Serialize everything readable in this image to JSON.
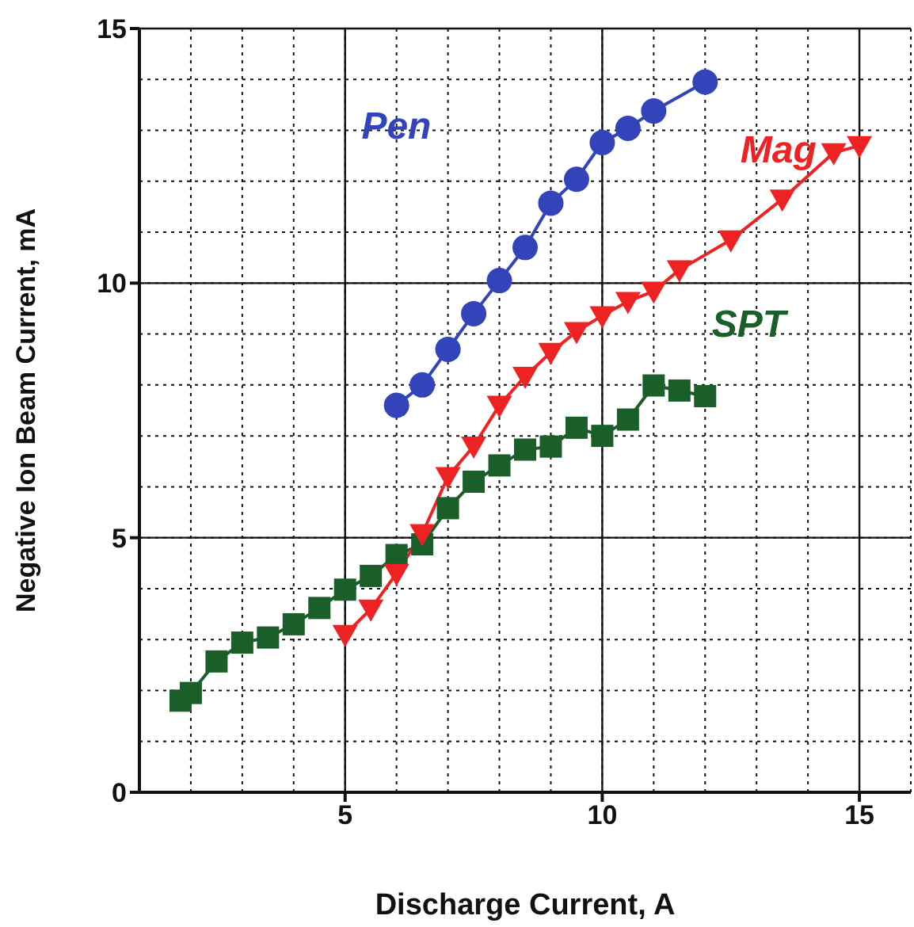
{
  "chart_data": {
    "type": "line",
    "xlabel": "Discharge Current, A",
    "ylabel": "Negative Ion Beam Current, mA",
    "xlim": [
      1,
      16
    ],
    "ylim": [
      0,
      15
    ],
    "xticks": [
      5,
      10,
      15
    ],
    "yticks": [
      0,
      5,
      10,
      15
    ],
    "grid": true,
    "line_style": "solid",
    "series": [
      {
        "name": "Pen",
        "color": "#3344bb",
        "marker": "circle",
        "x": [
          6,
          6.5,
          7,
          7.5,
          8,
          8.5,
          9,
          9.5,
          10,
          10.5,
          11,
          12
        ],
        "values": [
          7.6,
          8.0,
          8.7,
          9.4,
          10.05,
          10.7,
          11.57,
          12.04,
          12.76,
          13.04,
          13.38,
          13.95
        ]
      },
      {
        "name": "Mag",
        "color": "#ee2222",
        "marker": "triangle",
        "x": [
          5,
          5.5,
          6,
          6.5,
          7,
          7.5,
          8,
          8.5,
          9,
          9.5,
          10,
          10.5,
          11,
          11.5,
          12.5,
          13.5,
          14.5,
          15
        ],
        "values": [
          3.1,
          3.6,
          4.3,
          5.08,
          6.2,
          6.8,
          7.6,
          8.17,
          8.64,
          9.05,
          9.36,
          9.64,
          9.84,
          10.26,
          10.85,
          11.65,
          12.56,
          12.7
        ]
      },
      {
        "name": "SPT",
        "color": "#1a5e2a",
        "marker": "square",
        "x": [
          1.8,
          2,
          2.5,
          3,
          3.5,
          4,
          4.5,
          5,
          5.5,
          6,
          6.5,
          7,
          7.5,
          8,
          8.5,
          9,
          9.5,
          10,
          10.5,
          11,
          11.5,
          12
        ],
        "values": [
          1.8,
          1.95,
          2.57,
          2.94,
          3.04,
          3.3,
          3.62,
          3.98,
          4.25,
          4.66,
          4.87,
          5.58,
          6.1,
          6.42,
          6.73,
          6.79,
          7.16,
          7.0,
          7.32,
          7.99,
          7.89,
          7.78
        ]
      }
    ]
  }
}
